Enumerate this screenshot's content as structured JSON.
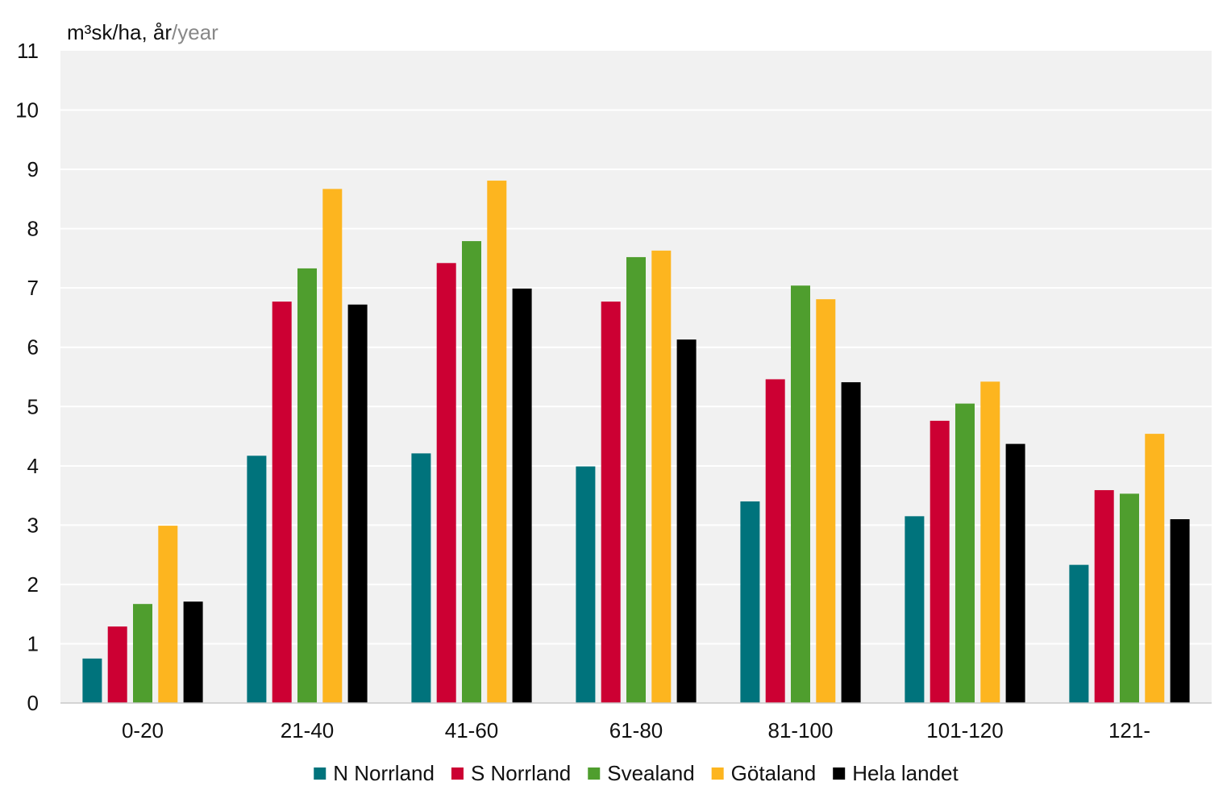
{
  "chart_data": {
    "type": "bar",
    "ylabel_main": "m³sk/ha, år",
    "ylabel_alt": "/year",
    "ylim": [
      0,
      11
    ],
    "yticks": [
      "0",
      "1",
      "2",
      "3",
      "4",
      "5",
      "6",
      "7",
      "8",
      "9",
      "10",
      "11"
    ],
    "grid": true,
    "legend_position": "bottom",
    "categories": [
      "0-20",
      "21-40",
      "41-60",
      "61-80",
      "81-100",
      "101-120",
      "121-"
    ],
    "series": [
      {
        "name": "N Norrland",
        "color": "#00737c",
        "values": [
          0.75,
          4.17,
          4.21,
          3.99,
          3.4,
          3.15,
          2.33
        ]
      },
      {
        "name": "S Norrland",
        "color": "#cc0033",
        "values": [
          1.29,
          6.77,
          7.42,
          6.77,
          5.46,
          4.76,
          3.59
        ]
      },
      {
        "name": "Svealand",
        "color": "#4f9e2e",
        "values": [
          1.67,
          7.33,
          7.79,
          7.52,
          7.04,
          5.05,
          3.53
        ]
      },
      {
        "name": "Götaland",
        "color": "#fdb51f",
        "values": [
          2.99,
          8.67,
          8.81,
          7.63,
          6.81,
          5.42,
          4.54
        ]
      },
      {
        "name": "Hela landet",
        "color": "#000000",
        "values": [
          1.71,
          6.72,
          6.99,
          6.13,
          5.41,
          4.37,
          3.1
        ]
      }
    ]
  }
}
